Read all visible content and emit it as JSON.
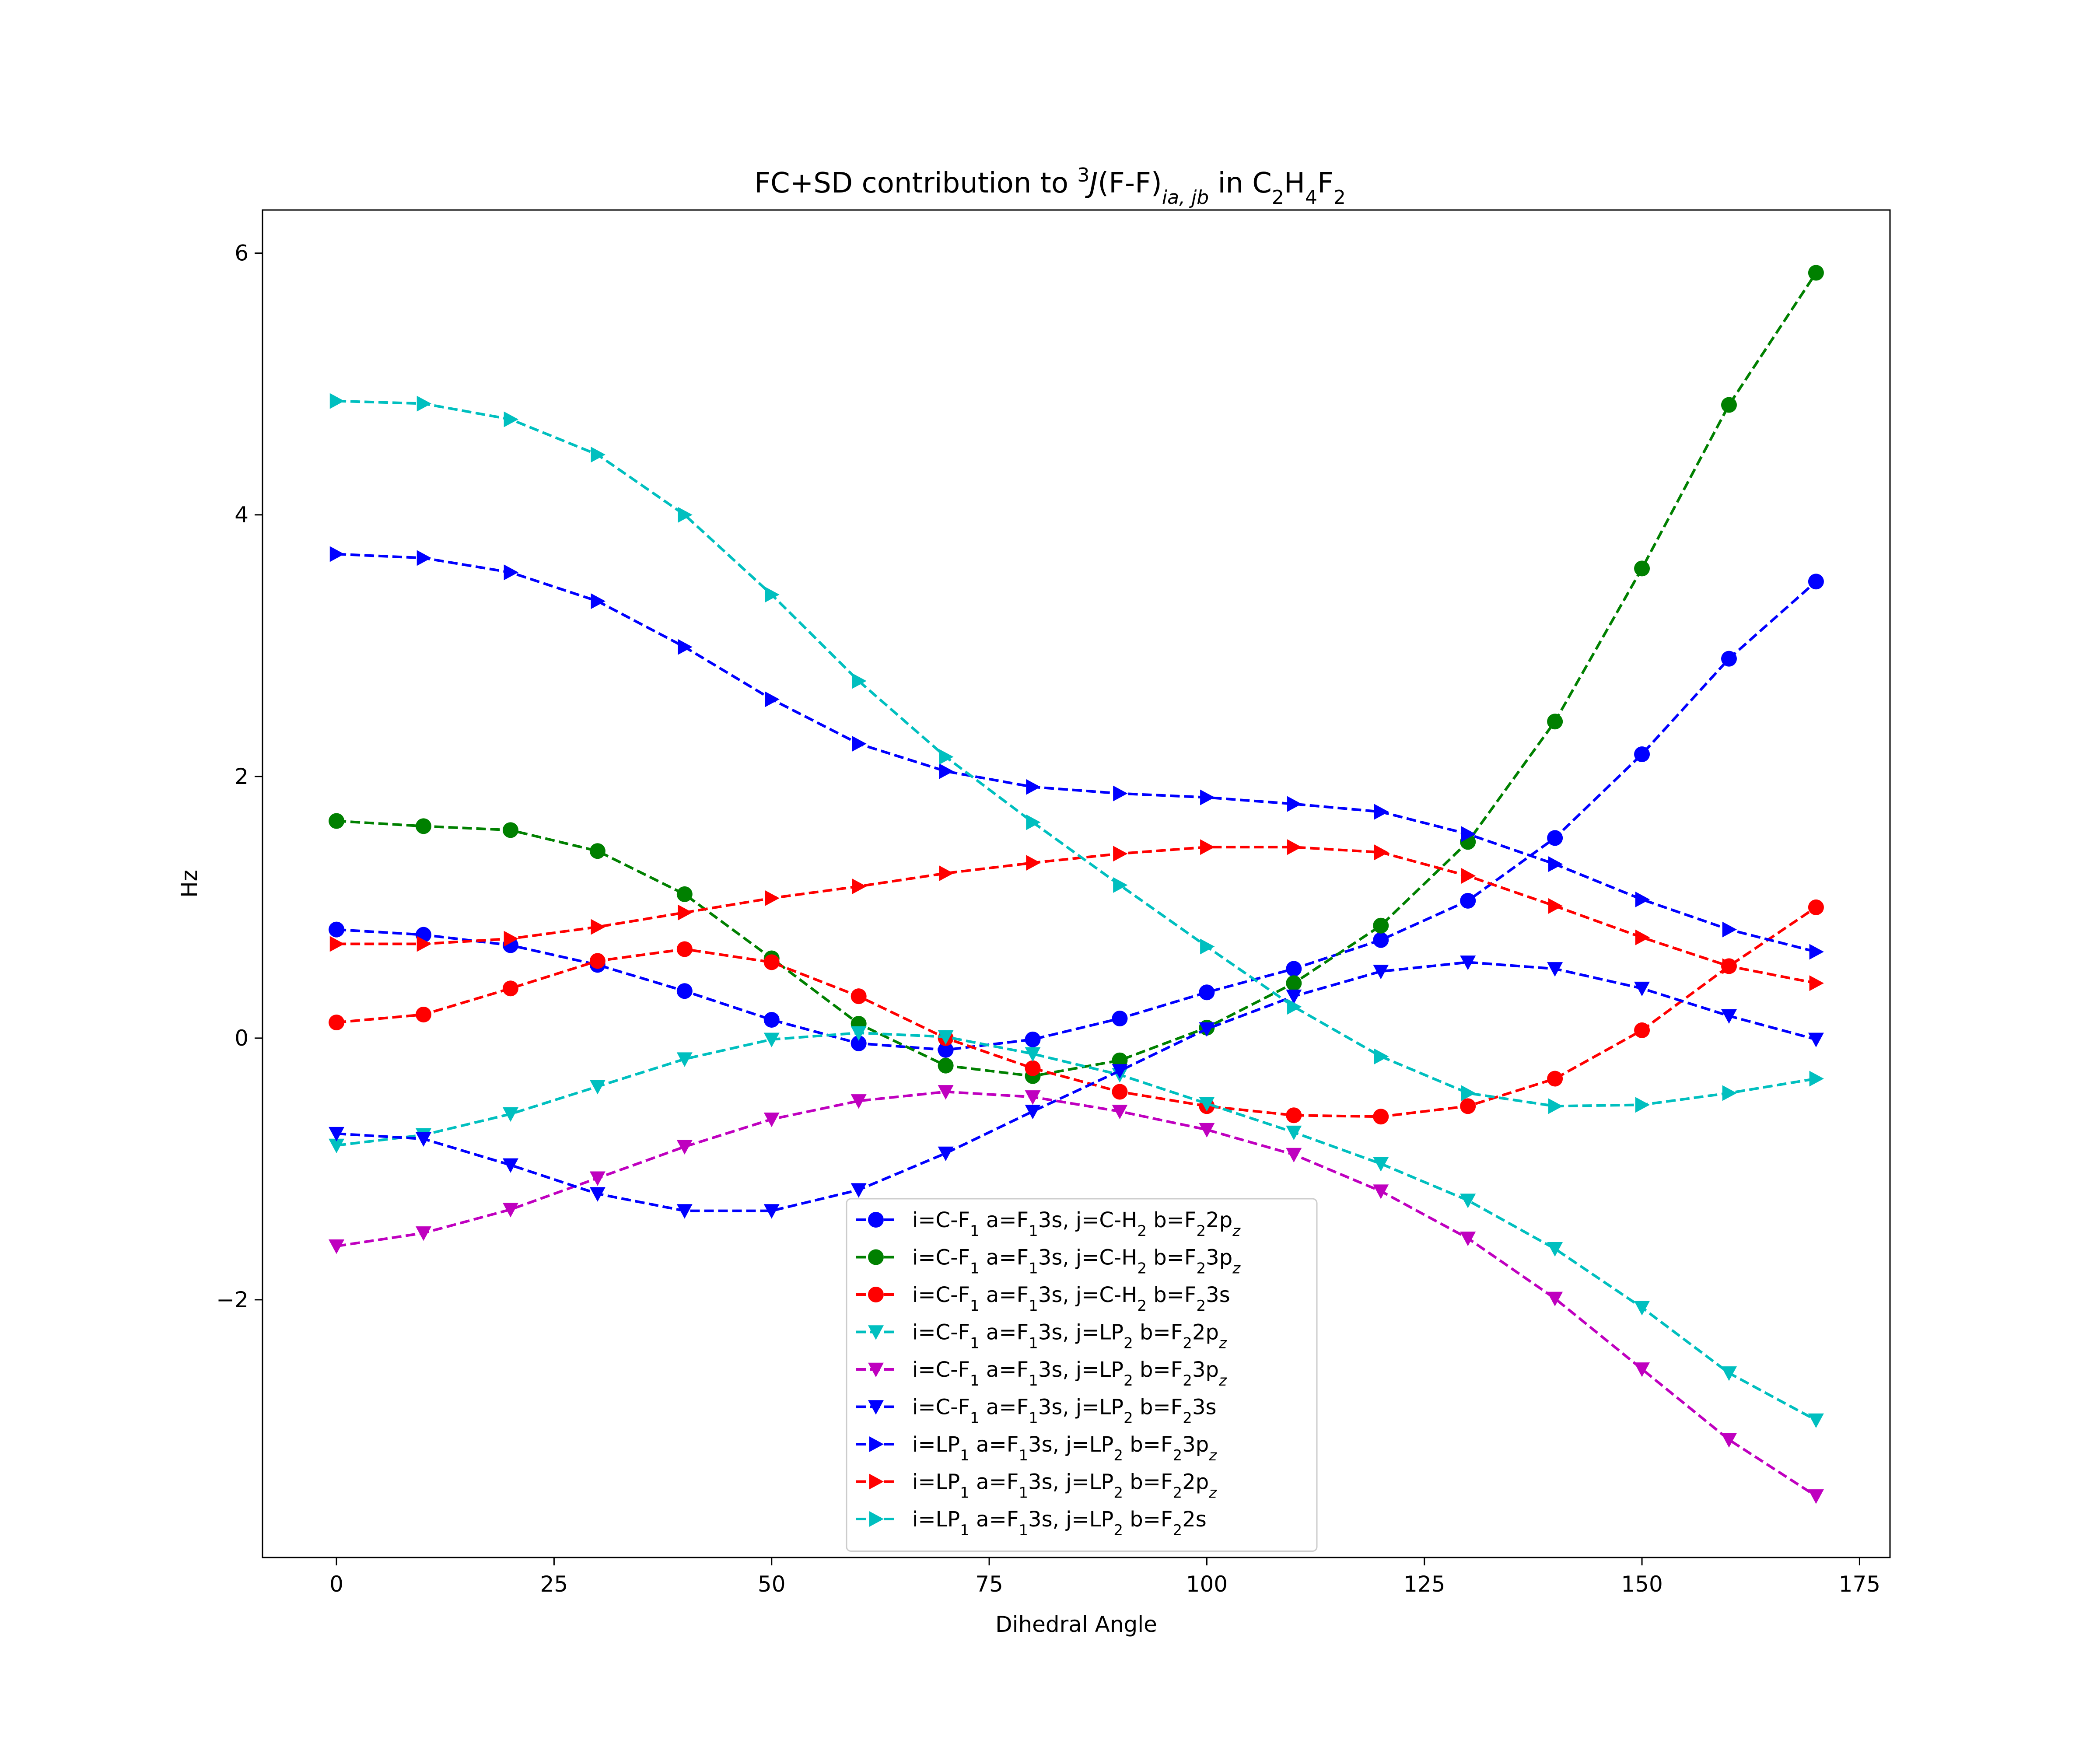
{
  "chart_data": {
    "type": "line",
    "title": {
      "prefix": "FC+SD contribution to ",
      "sup": "3",
      "italic": "J",
      "mid": "(F-F)",
      "sub": "ia, jb",
      "suffix": " in C",
      "c_sub": "2",
      "h": "H",
      "h_sub": "4",
      "f": "F",
      "f_sub": "2"
    },
    "xlabel": "Dihedral Angle",
    "ylabel": "Hz",
    "xlim": [
      -8.5,
      178.5
    ],
    "ylim": [
      -3.97,
      6.33
    ],
    "xticks": [
      0,
      25,
      50,
      75,
      100,
      125,
      150,
      175
    ],
    "yticks": [
      -2,
      0,
      2,
      4,
      6
    ],
    "ytick_labels": [
      "−2",
      "0",
      "2",
      "4",
      "6"
    ],
    "grid": false,
    "legend_position": "lower-center",
    "x": [
      0,
      10,
      20,
      30,
      40,
      50,
      60,
      70,
      80,
      90,
      100,
      110,
      120,
      130,
      140,
      150,
      160,
      170
    ],
    "series": [
      {
        "label_parts": [
          [
            "i=C-F",
            ""
          ],
          [
            "1",
            "sub"
          ],
          [
            " a=F",
            ""
          ],
          [
            "1",
            "sub"
          ],
          [
            "3s, j=C-H",
            ""
          ],
          [
            "2",
            "sub"
          ],
          [
            " b=F",
            ""
          ],
          [
            "2",
            "sub"
          ],
          [
            "2p",
            ""
          ],
          [
            "z",
            "subi"
          ]
        ],
        "color": "#0000ff",
        "marker": "circle",
        "values": [
          0.83,
          0.79,
          0.71,
          0.56,
          0.36,
          0.14,
          -0.04,
          -0.09,
          -0.01,
          0.15,
          0.35,
          0.53,
          0.75,
          1.05,
          1.53,
          2.17,
          2.9,
          3.49
        ]
      },
      {
        "label_parts": [
          [
            "i=C-F",
            ""
          ],
          [
            "1",
            "sub"
          ],
          [
            " a=F",
            ""
          ],
          [
            "1",
            "sub"
          ],
          [
            "3s, j=C-H",
            ""
          ],
          [
            "2",
            "sub"
          ],
          [
            " b=F",
            ""
          ],
          [
            "2",
            "sub"
          ],
          [
            "3p",
            ""
          ],
          [
            "z",
            "subi"
          ]
        ],
        "color": "#008000",
        "marker": "circle",
        "values": [
          1.66,
          1.62,
          1.59,
          1.43,
          1.1,
          0.61,
          0.11,
          -0.21,
          -0.29,
          -0.17,
          0.08,
          0.42,
          0.86,
          1.5,
          2.42,
          3.59,
          4.84,
          5.85
        ]
      },
      {
        "label_parts": [
          [
            "i=C-F",
            ""
          ],
          [
            "1",
            "sub"
          ],
          [
            " a=F",
            ""
          ],
          [
            "1",
            "sub"
          ],
          [
            "3s, j=C-H",
            ""
          ],
          [
            "2",
            "sub"
          ],
          [
            " b=F",
            ""
          ],
          [
            "2",
            "sub"
          ],
          [
            "3s",
            ""
          ]
        ],
        "color": "#ff0000",
        "marker": "circle",
        "values": [
          0.12,
          0.18,
          0.38,
          0.59,
          0.68,
          0.58,
          0.32,
          0.0,
          -0.23,
          -0.41,
          -0.52,
          -0.59,
          -0.6,
          -0.52,
          -0.31,
          0.06,
          0.55,
          1.0
        ]
      },
      {
        "label_parts": [
          [
            "i=C-F",
            ""
          ],
          [
            "1",
            "sub"
          ],
          [
            " a=F",
            ""
          ],
          [
            "1",
            "sub"
          ],
          [
            "3s, j=LP",
            ""
          ],
          [
            "2",
            "sub"
          ],
          [
            " b=F",
            ""
          ],
          [
            "2",
            "sub"
          ],
          [
            "2p",
            ""
          ],
          [
            "z",
            "subi"
          ]
        ],
        "color": "#00bfbf",
        "marker": "tri-down",
        "values": [
          -0.82,
          -0.74,
          -0.58,
          -0.37,
          -0.16,
          -0.01,
          0.04,
          0.01,
          -0.12,
          -0.28,
          -0.5,
          -0.72,
          -0.96,
          -1.24,
          -1.61,
          -2.06,
          -2.56,
          -2.92
        ]
      },
      {
        "label_parts": [
          [
            "i=C-F",
            ""
          ],
          [
            "1",
            "sub"
          ],
          [
            " a=F",
            ""
          ],
          [
            "1",
            "sub"
          ],
          [
            "3s, j=LP",
            ""
          ],
          [
            "2",
            "sub"
          ],
          [
            " b=F",
            ""
          ],
          [
            "2",
            "sub"
          ],
          [
            "3p",
            ""
          ],
          [
            "z",
            "subi"
          ]
        ],
        "color": "#bf00bf",
        "marker": "tri-down",
        "values": [
          -1.59,
          -1.49,
          -1.31,
          -1.07,
          -0.83,
          -0.62,
          -0.48,
          -0.41,
          -0.45,
          -0.56,
          -0.7,
          -0.89,
          -1.17,
          -1.53,
          -1.99,
          -2.53,
          -3.07,
          -3.5
        ]
      },
      {
        "label_parts": [
          [
            "i=C-F",
            ""
          ],
          [
            "1",
            "sub"
          ],
          [
            " a=F",
            ""
          ],
          [
            "1",
            "sub"
          ],
          [
            "3s, j=LP",
            ""
          ],
          [
            "2",
            "sub"
          ],
          [
            " b=F",
            ""
          ],
          [
            "2",
            "sub"
          ],
          [
            "3s",
            ""
          ]
        ],
        "color": "#0000ff",
        "marker": "tri-down",
        "values": [
          -0.73,
          -0.77,
          -0.97,
          -1.19,
          -1.32,
          -1.32,
          -1.16,
          -0.88,
          -0.56,
          -0.25,
          0.07,
          0.32,
          0.51,
          0.58,
          0.53,
          0.38,
          0.17,
          -0.01
        ]
      },
      {
        "label_parts": [
          [
            "i=LP",
            ""
          ],
          [
            "1",
            "sub"
          ],
          [
            " a=F",
            ""
          ],
          [
            "1",
            "sub"
          ],
          [
            "3s, j=LP",
            ""
          ],
          [
            "2",
            "sub"
          ],
          [
            " b=F",
            ""
          ],
          [
            "2",
            "sub"
          ],
          [
            "3p",
            ""
          ],
          [
            "z",
            "subi"
          ]
        ],
        "color": "#0000ff",
        "marker": "tri-right",
        "values": [
          3.7,
          3.67,
          3.56,
          3.34,
          2.99,
          2.59,
          2.25,
          2.04,
          1.92,
          1.87,
          1.84,
          1.79,
          1.73,
          1.56,
          1.33,
          1.06,
          0.83,
          0.66
        ]
      },
      {
        "label_parts": [
          [
            "i=LP",
            ""
          ],
          [
            "1",
            "sub"
          ],
          [
            " a=F",
            ""
          ],
          [
            "1",
            "sub"
          ],
          [
            "3s, j=LP",
            ""
          ],
          [
            "2",
            "sub"
          ],
          [
            " b=F",
            ""
          ],
          [
            "2",
            "sub"
          ],
          [
            "2p",
            ""
          ],
          [
            "z",
            "subi"
          ]
        ],
        "color": "#ff0000",
        "marker": "tri-right",
        "values": [
          0.72,
          0.72,
          0.76,
          0.85,
          0.96,
          1.07,
          1.16,
          1.26,
          1.34,
          1.41,
          1.46,
          1.46,
          1.42,
          1.24,
          1.01,
          0.77,
          0.55,
          0.42
        ]
      },
      {
        "label_parts": [
          [
            "i=LP",
            ""
          ],
          [
            "1",
            "sub"
          ],
          [
            " a=F",
            ""
          ],
          [
            "1",
            "sub"
          ],
          [
            "3s, j=LP",
            ""
          ],
          [
            "2",
            "sub"
          ],
          [
            " b=F",
            ""
          ],
          [
            "2",
            "sub"
          ],
          [
            "2s",
            ""
          ]
        ],
        "color": "#00bfbf",
        "marker": "tri-right",
        "values": [
          4.87,
          4.85,
          4.73,
          4.46,
          4.0,
          3.39,
          2.73,
          2.15,
          1.65,
          1.17,
          0.7,
          0.24,
          -0.14,
          -0.42,
          -0.52,
          -0.51,
          -0.42,
          -0.31
        ]
      }
    ]
  }
}
